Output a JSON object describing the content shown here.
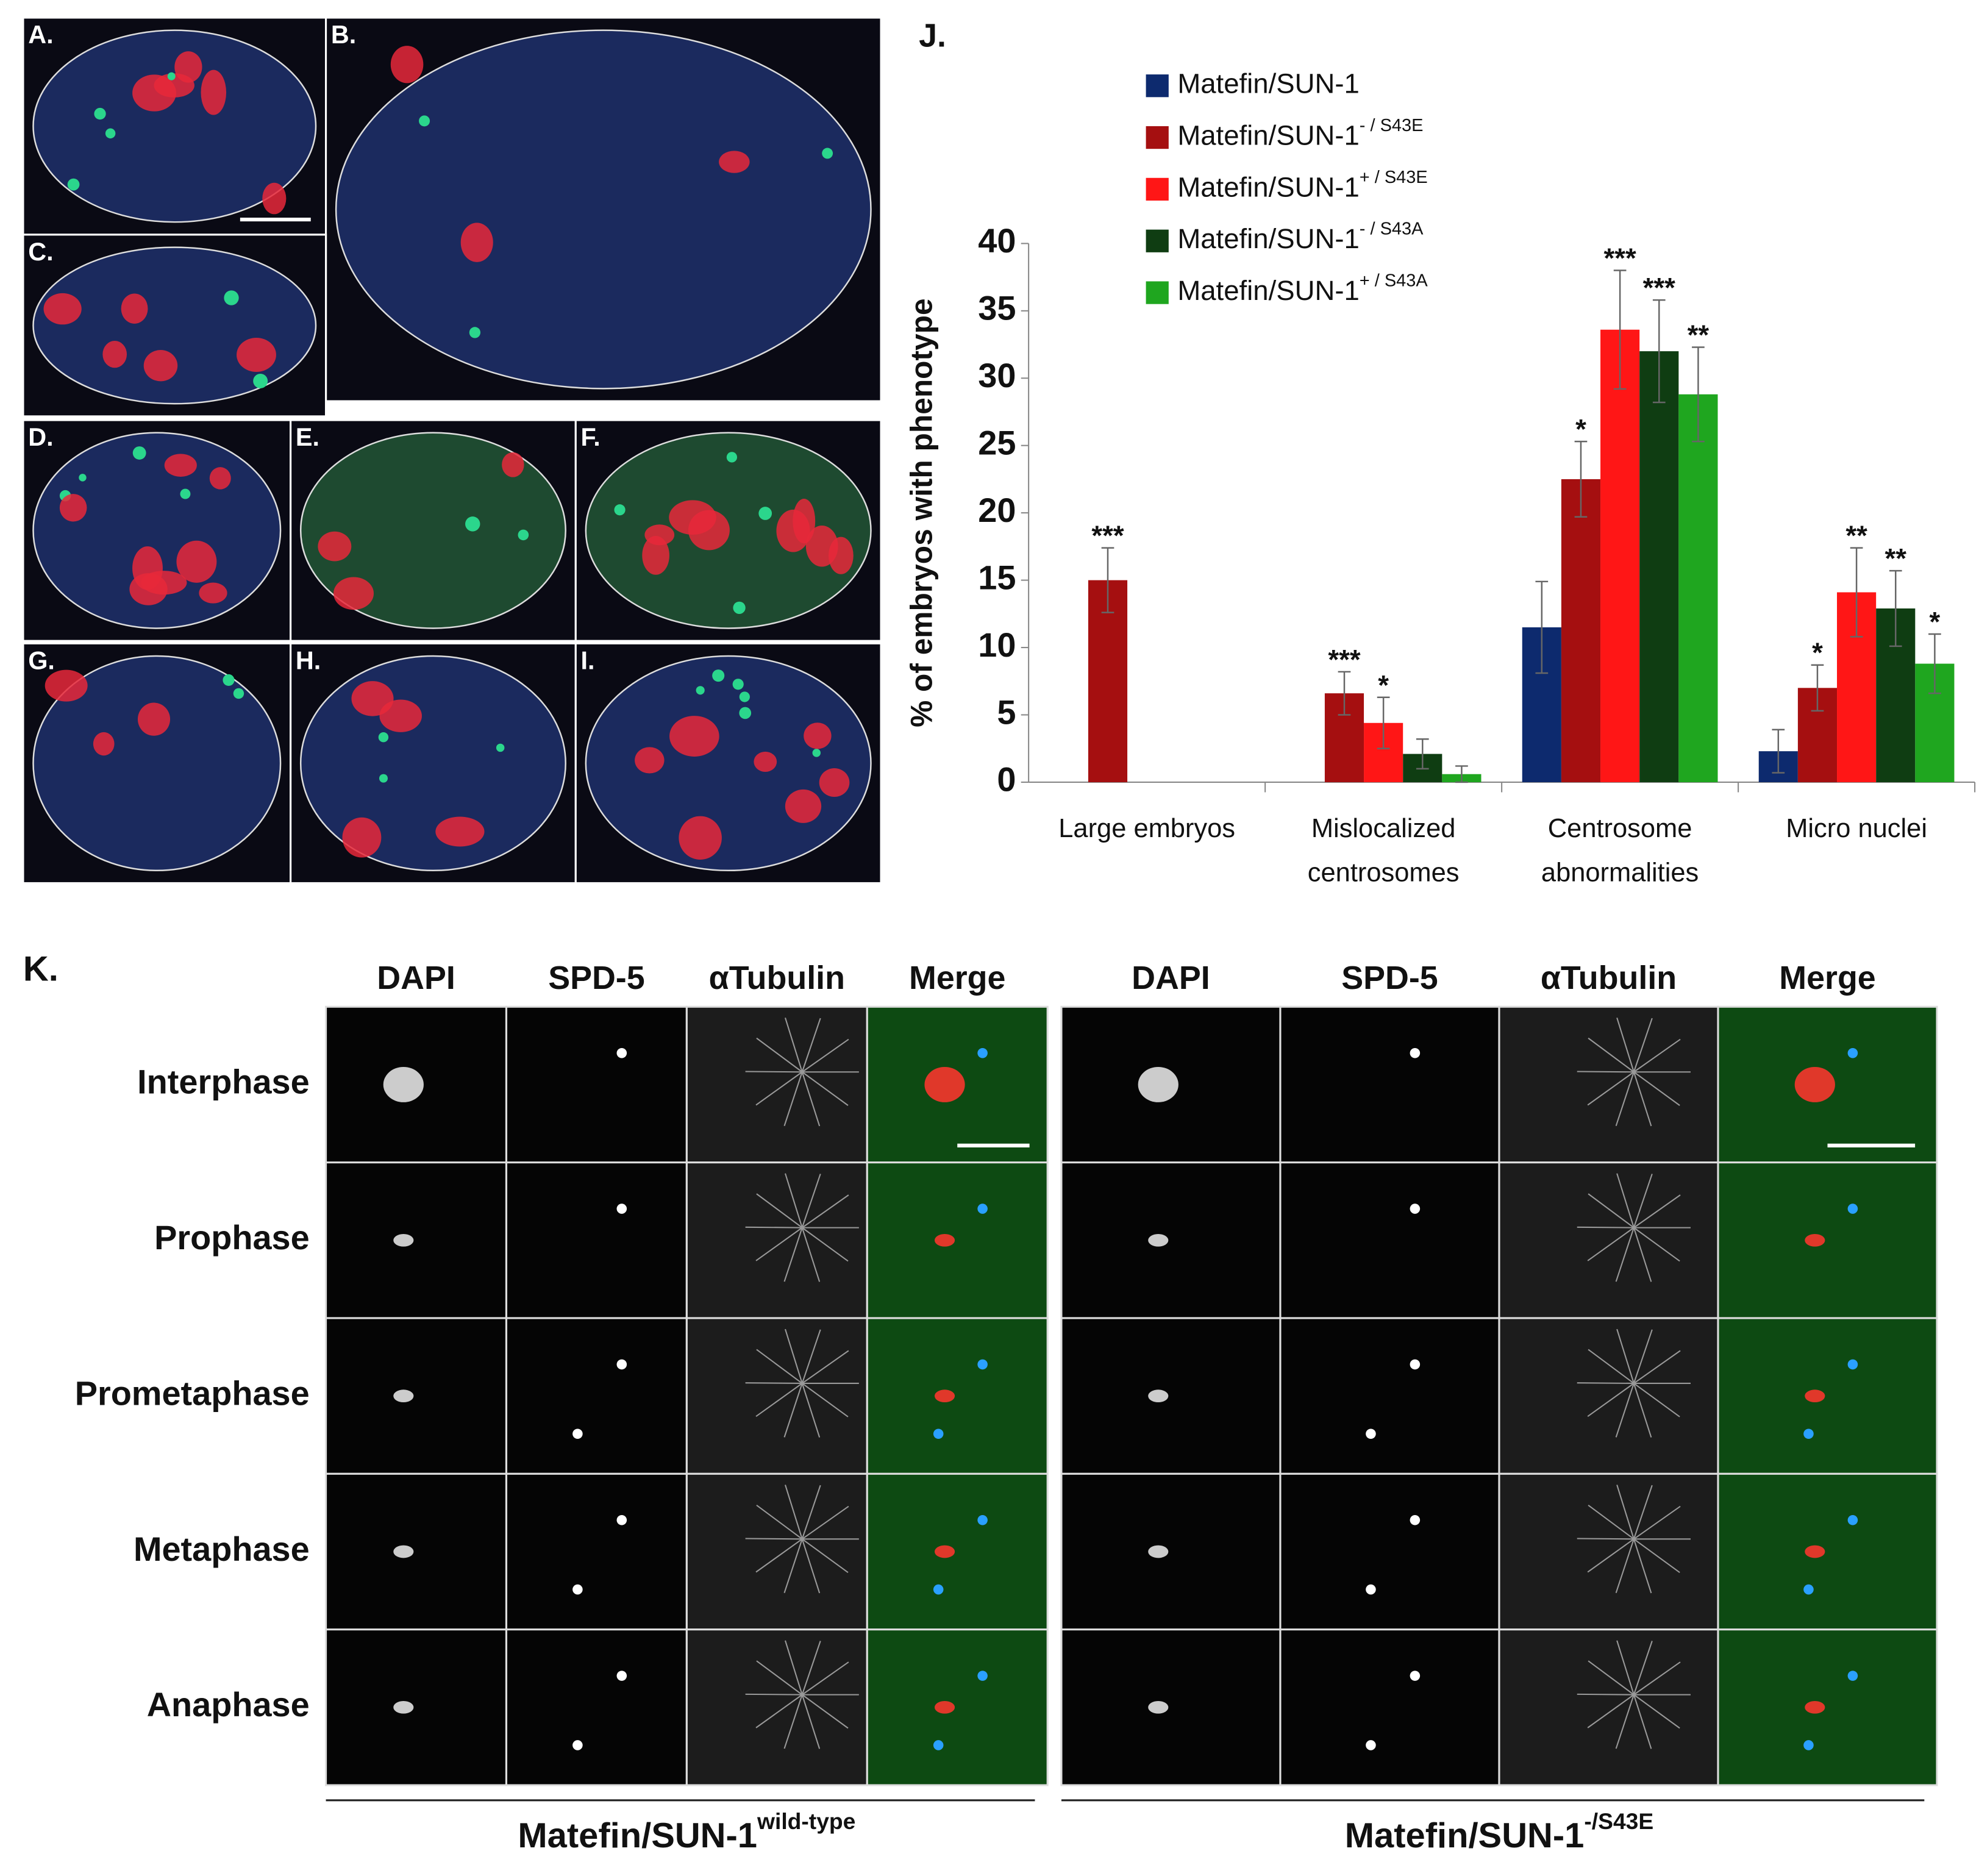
{
  "panels": {
    "labels": [
      "A.",
      "B.",
      "C.",
      "D.",
      "E.",
      "F.",
      "G.",
      "H.",
      "I."
    ]
  },
  "chart_data": {
    "type": "bar",
    "panel_label": "J.",
    "ylabel": "% of embryos with phenotype",
    "categories": [
      [
        "Large embryos"
      ],
      [
        "Mislocalized",
        "centrosomes"
      ],
      [
        "Centrosome",
        "abnormalities"
      ],
      [
        "Micro nuclei"
      ]
    ],
    "ylim": [
      0,
      40
    ],
    "yticks": [
      0,
      5,
      10,
      15,
      20,
      25,
      30,
      35,
      40
    ],
    "legend": "top",
    "series": [
      {
        "name": "Matefin/SUN-1",
        "superscript": null,
        "color": "#0d2a6e",
        "values": [
          0,
          0,
          11.5,
          2.3
        ],
        "errors": [
          0,
          0,
          3.4,
          1.6
        ],
        "significance": [
          null,
          null,
          null,
          null
        ]
      },
      {
        "name": "Matefin/SUN-1",
        "superscript": "- / S43E",
        "color": "#a50f10",
        "values": [
          15,
          6.6,
          22.5,
          7
        ],
        "errors": [
          2.4,
          1.6,
          2.8,
          1.7
        ],
        "significance": [
          "***",
          "***",
          "*",
          "*"
        ]
      },
      {
        "name": "Matefin/SUN-1",
        "superscript": "+ / S43E",
        "color": "#ff1616",
        "values": [
          0,
          4.4,
          33.6,
          14.1
        ],
        "errors": [
          0,
          1.9,
          4.4,
          3.3
        ],
        "significance": [
          null,
          "*",
          "***",
          "**"
        ]
      },
      {
        "name": "Matefin/SUN-1",
        "superscript": "- / S43A",
        "color": "#0f3d12",
        "values": [
          0,
          2.1,
          32,
          12.9
        ],
        "errors": [
          0,
          1.1,
          3.8,
          2.8
        ],
        "significance": [
          null,
          null,
          "***",
          "**"
        ]
      },
      {
        "name": "Matefin/SUN-1",
        "superscript": "+ / S43A",
        "color": "#1fa61f",
        "values": [
          0,
          0.6,
          28.8,
          8.8
        ],
        "errors": [
          0,
          0.6,
          3.5,
          2.2
        ],
        "significance": [
          null,
          null,
          "**",
          "*"
        ]
      }
    ]
  },
  "panel_k": {
    "label": "K.",
    "channels": [
      "DAPI",
      "SPD-5",
      "αTubulin",
      "Merge"
    ],
    "phases": [
      "Interphase",
      "Prophase",
      "Prometaphase",
      "Metaphase",
      "Anaphase"
    ],
    "groups": [
      {
        "name": "Matefin/SUN-1",
        "superscript": "wild-type"
      },
      {
        "name": "Matefin/SUN-1",
        "superscript": "-/S43E"
      }
    ]
  }
}
